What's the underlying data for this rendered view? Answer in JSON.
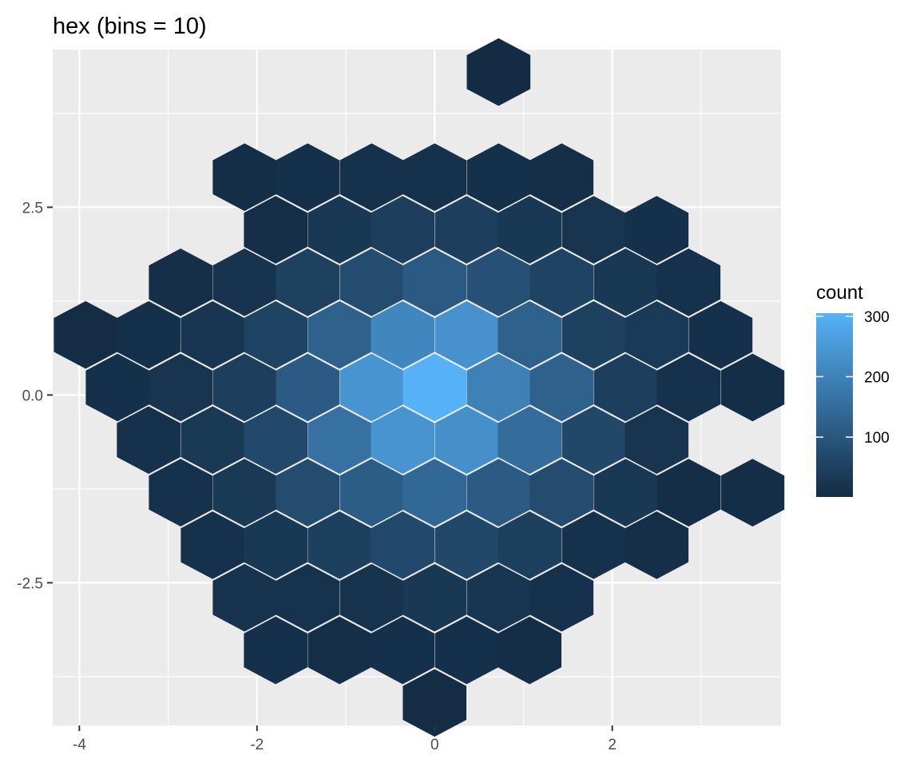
{
  "chart_data": {
    "type": "heatmap",
    "geom": "hexbin",
    "title": "hex (bins = 10)",
    "xlabel": "",
    "ylabel": "",
    "xlim": [
      -4.3,
      3.9
    ],
    "ylim": [
      -4.4,
      4.6
    ],
    "x_ticks": [
      -4,
      -2,
      0,
      2
    ],
    "x_tick_labels": [
      "-4",
      "-2",
      "0",
      "2"
    ],
    "y_ticks": [
      -2.5,
      0,
      2.5
    ],
    "y_tick_labels": [
      "-2.5",
      "0.0",
      "2.5"
    ],
    "grid": true,
    "legend": {
      "title": "count",
      "position": "right",
      "breaks": [
        100,
        200,
        300
      ],
      "break_labels": [
        "100",
        "200",
        "300"
      ],
      "range": [
        1,
        305
      ],
      "low_color": "#132B43",
      "high_color": "#56B1F7"
    },
    "hexes": [
      {
        "x": 0.72,
        "y": 4.3,
        "count": 3
      },
      {
        "x": -2.14,
        "y": 2.9,
        "count": 8
      },
      {
        "x": -1.43,
        "y": 2.9,
        "count": 12
      },
      {
        "x": -0.71,
        "y": 2.9,
        "count": 15
      },
      {
        "x": 0.0,
        "y": 2.9,
        "count": 15
      },
      {
        "x": 0.72,
        "y": 2.9,
        "count": 12
      },
      {
        "x": 1.43,
        "y": 2.9,
        "count": 10
      },
      {
        "x": -1.79,
        "y": 2.2,
        "count": 10
      },
      {
        "x": -1.07,
        "y": 2.2,
        "count": 30
      },
      {
        "x": -0.36,
        "y": 2.2,
        "count": 45
      },
      {
        "x": 0.36,
        "y": 2.2,
        "count": 45
      },
      {
        "x": 1.07,
        "y": 2.2,
        "count": 30
      },
      {
        "x": 1.79,
        "y": 2.2,
        "count": 22
      },
      {
        "x": 2.5,
        "y": 2.2,
        "count": 12
      },
      {
        "x": -2.86,
        "y": 1.5,
        "count": 10
      },
      {
        "x": -2.14,
        "y": 1.5,
        "count": 20
      },
      {
        "x": -1.43,
        "y": 1.5,
        "count": 50
      },
      {
        "x": -0.71,
        "y": 1.5,
        "count": 75
      },
      {
        "x": 0.0,
        "y": 1.5,
        "count": 105
      },
      {
        "x": 0.72,
        "y": 1.5,
        "count": 85
      },
      {
        "x": 1.43,
        "y": 1.5,
        "count": 55
      },
      {
        "x": 2.15,
        "y": 1.5,
        "count": 30
      },
      {
        "x": 2.86,
        "y": 1.5,
        "count": 15
      },
      {
        "x": -3.93,
        "y": 0.8,
        "count": 5
      },
      {
        "x": -3.22,
        "y": 0.8,
        "count": 12
      },
      {
        "x": -2.5,
        "y": 0.8,
        "count": 25
      },
      {
        "x": -1.79,
        "y": 0.8,
        "count": 55
      },
      {
        "x": -1.07,
        "y": 0.8,
        "count": 125
      },
      {
        "x": -0.36,
        "y": 0.8,
        "count": 210
      },
      {
        "x": 0.36,
        "y": 0.8,
        "count": 235
      },
      {
        "x": 1.07,
        "y": 0.8,
        "count": 125
      },
      {
        "x": 1.79,
        "y": 0.8,
        "count": 50
      },
      {
        "x": 2.5,
        "y": 0.8,
        "count": 35
      },
      {
        "x": 3.22,
        "y": 0.8,
        "count": 12
      },
      {
        "x": -3.57,
        "y": 0.1,
        "count": 12
      },
      {
        "x": -2.86,
        "y": 0.1,
        "count": 22
      },
      {
        "x": -2.14,
        "y": 0.1,
        "count": 45
      },
      {
        "x": -1.43,
        "y": 0.1,
        "count": 110
      },
      {
        "x": -0.71,
        "y": 0.1,
        "count": 240
      },
      {
        "x": 0.0,
        "y": 0.1,
        "count": 305
      },
      {
        "x": 0.72,
        "y": 0.1,
        "count": 195
      },
      {
        "x": 1.43,
        "y": 0.1,
        "count": 125
      },
      {
        "x": 2.15,
        "y": 0.1,
        "count": 45
      },
      {
        "x": 2.86,
        "y": 0.1,
        "count": 15
      },
      {
        "x": 3.58,
        "y": 0.1,
        "count": 8
      },
      {
        "x": -3.22,
        "y": -0.6,
        "count": 15
      },
      {
        "x": -2.5,
        "y": -0.6,
        "count": 32
      },
      {
        "x": -1.79,
        "y": -0.6,
        "count": 70
      },
      {
        "x": -1.07,
        "y": -0.6,
        "count": 160
      },
      {
        "x": -0.36,
        "y": -0.6,
        "count": 240
      },
      {
        "x": 0.36,
        "y": -0.6,
        "count": 230
      },
      {
        "x": 1.07,
        "y": -0.6,
        "count": 150
      },
      {
        "x": 1.79,
        "y": -0.6,
        "count": 65
      },
      {
        "x": 2.5,
        "y": -0.6,
        "count": 22
      },
      {
        "x": -2.86,
        "y": -1.3,
        "count": 15
      },
      {
        "x": -2.14,
        "y": -1.3,
        "count": 32
      },
      {
        "x": -1.43,
        "y": -1.3,
        "count": 75
      },
      {
        "x": -0.71,
        "y": -1.3,
        "count": 115
      },
      {
        "x": 0.0,
        "y": -1.3,
        "count": 140
      },
      {
        "x": 0.72,
        "y": -1.3,
        "count": 110
      },
      {
        "x": 1.43,
        "y": -1.3,
        "count": 75
      },
      {
        "x": 2.15,
        "y": -1.3,
        "count": 30
      },
      {
        "x": 2.86,
        "y": -1.3,
        "count": 8
      },
      {
        "x": 3.58,
        "y": -1.3,
        "count": 8
      },
      {
        "x": -2.5,
        "y": -2.0,
        "count": 15
      },
      {
        "x": -1.79,
        "y": -2.0,
        "count": 30
      },
      {
        "x": -1.07,
        "y": -2.0,
        "count": 48
      },
      {
        "x": -0.36,
        "y": -2.0,
        "count": 70
      },
      {
        "x": 0.36,
        "y": -2.0,
        "count": 65
      },
      {
        "x": 1.07,
        "y": -2.0,
        "count": 48
      },
      {
        "x": 1.79,
        "y": -2.0,
        "count": 15
      },
      {
        "x": 2.5,
        "y": -2.0,
        "count": 10
      },
      {
        "x": -2.14,
        "y": -2.7,
        "count": 20
      },
      {
        "x": -1.43,
        "y": -2.7,
        "count": 18
      },
      {
        "x": -0.71,
        "y": -2.7,
        "count": 20
      },
      {
        "x": 0.0,
        "y": -2.7,
        "count": 30
      },
      {
        "x": 0.72,
        "y": -2.7,
        "count": 25
      },
      {
        "x": 1.43,
        "y": -2.7,
        "count": 15
      },
      {
        "x": -1.79,
        "y": -3.4,
        "count": 12
      },
      {
        "x": -1.07,
        "y": -3.4,
        "count": 10
      },
      {
        "x": -0.36,
        "y": -3.4,
        "count": 12
      },
      {
        "x": 0.36,
        "y": -3.4,
        "count": 12
      },
      {
        "x": 1.07,
        "y": -3.4,
        "count": 8
      },
      {
        "x": 0.0,
        "y": -4.1,
        "count": 5
      }
    ]
  }
}
